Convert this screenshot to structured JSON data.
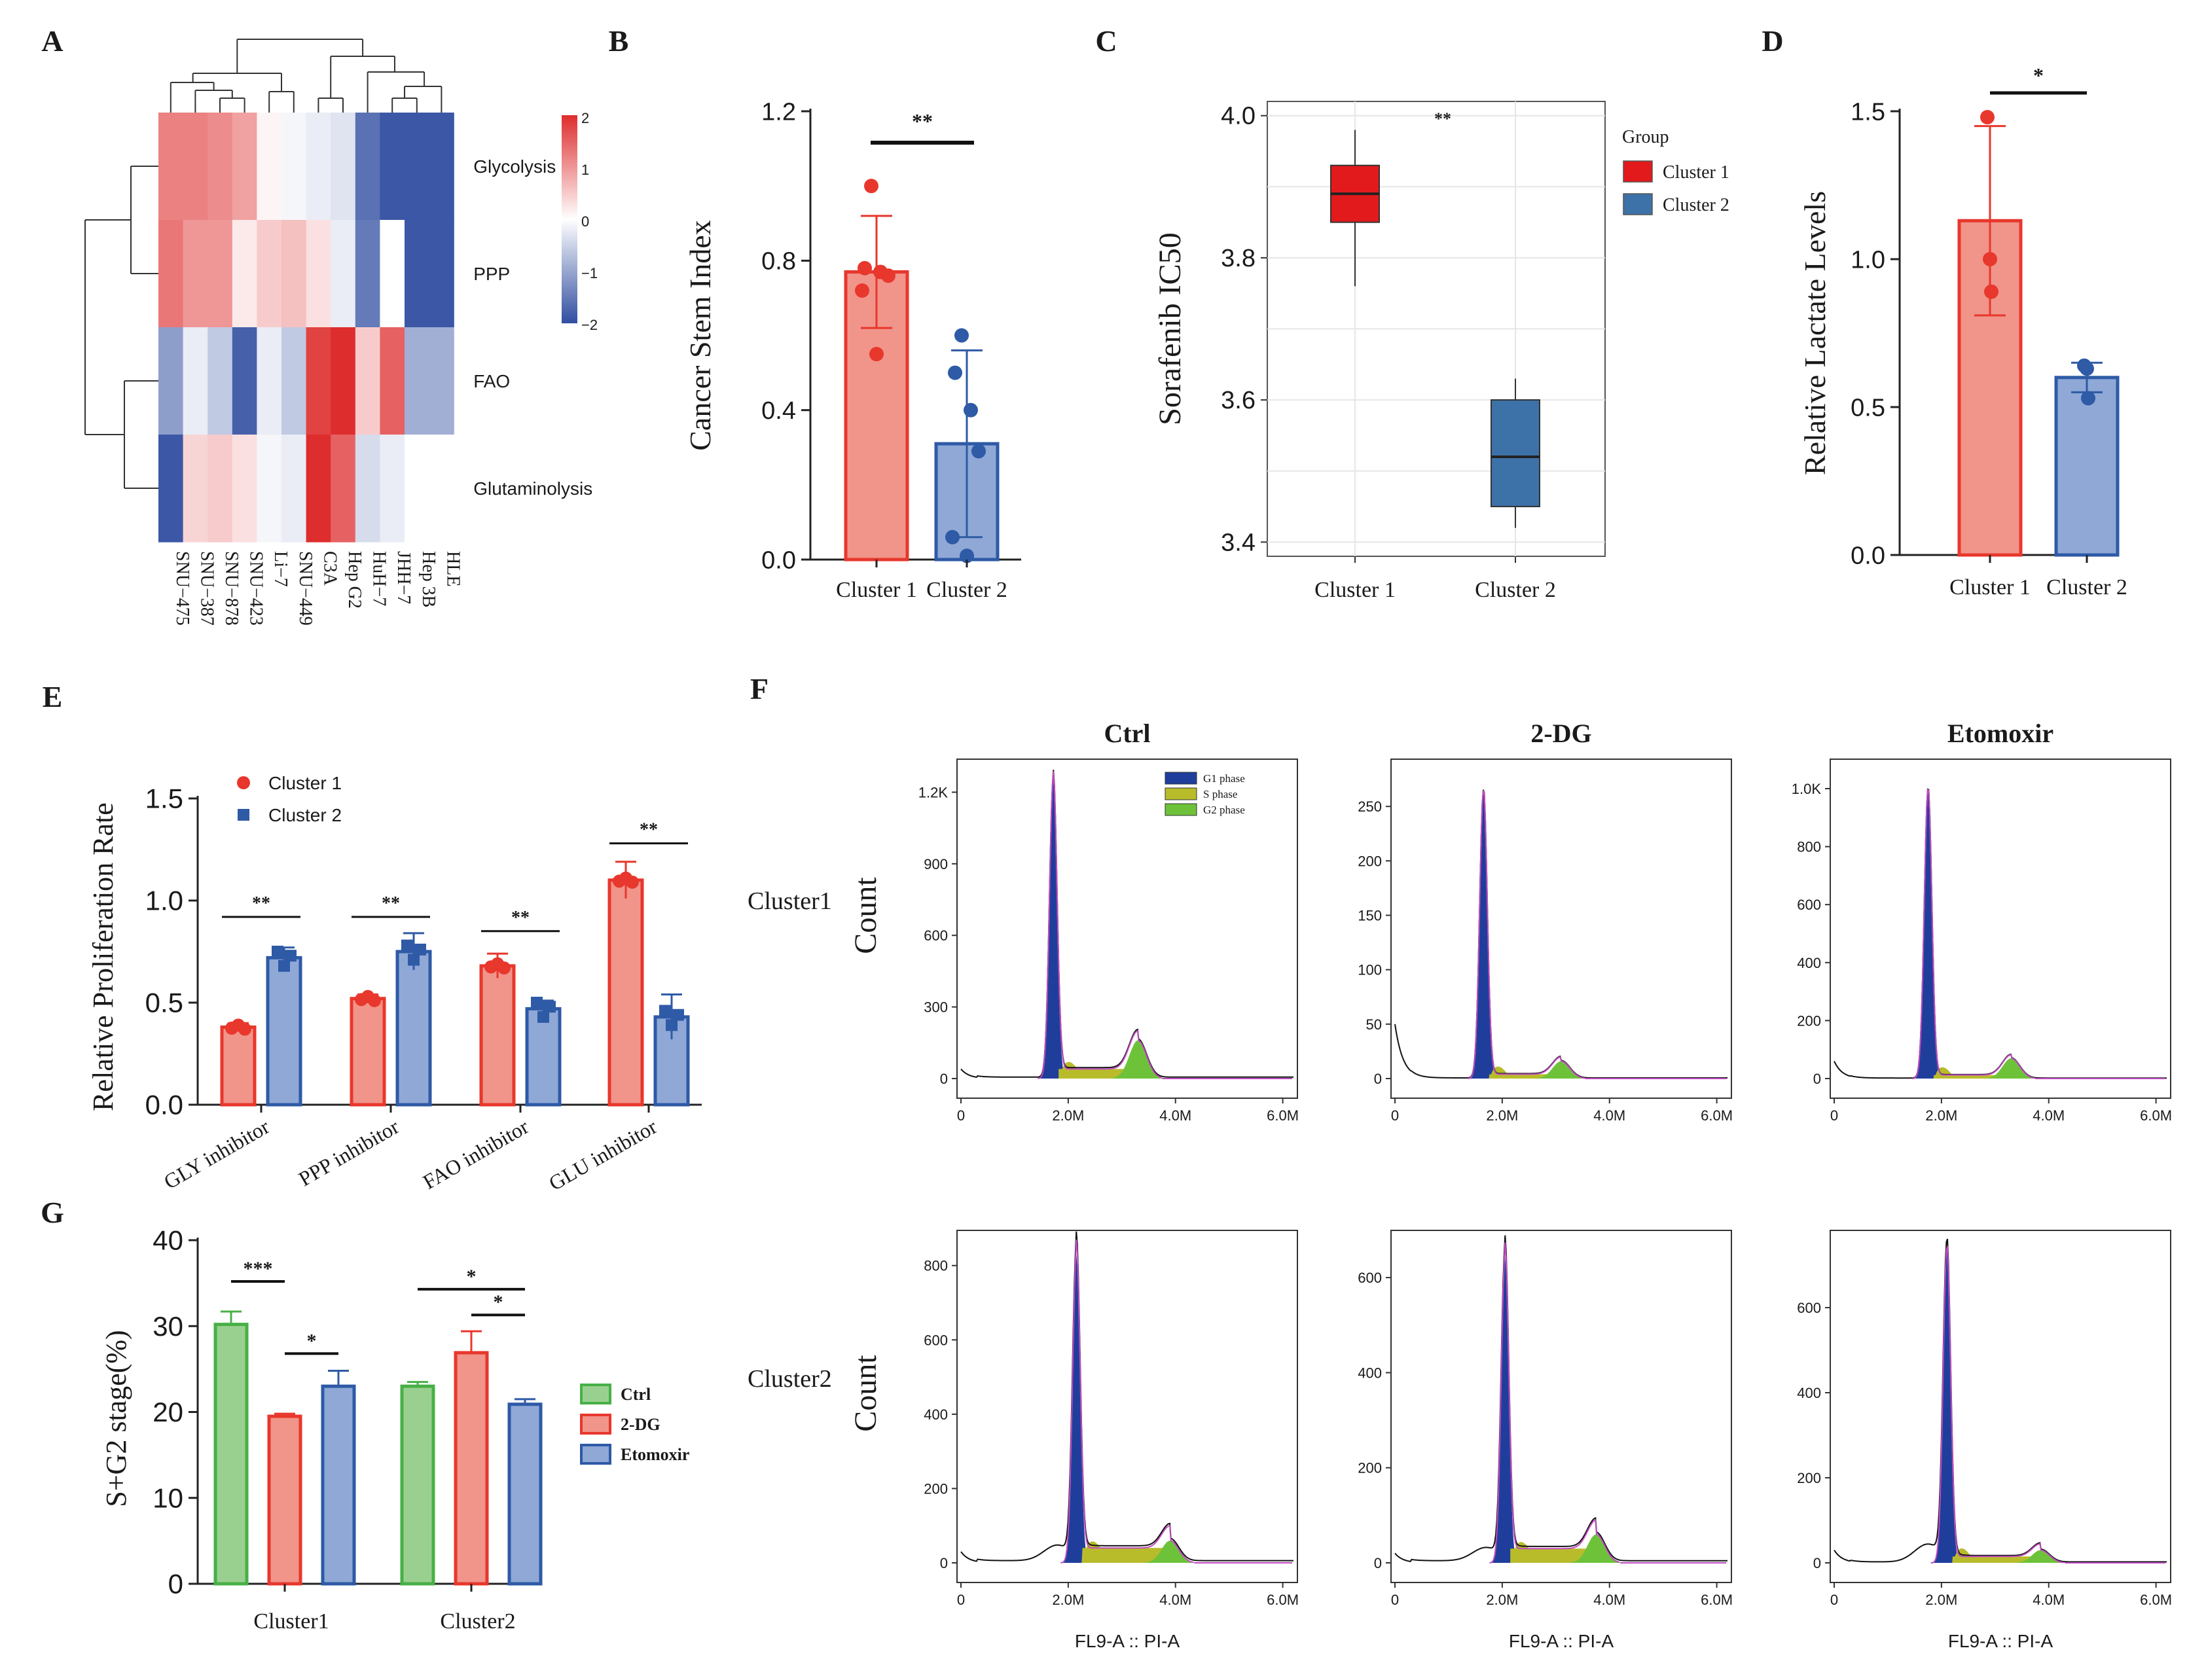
{
  "colors": {
    "red_fill": "#F1948A",
    "red_edge": "#E8372C",
    "blue_fill": "#8FA8D6",
    "blue_edge": "#2E5AA6",
    "green_fill": "#9AD08F",
    "green_edge": "#47B047",
    "box_red": "#E31A1C",
    "box_blue": "#3D72A8",
    "g1": "#1F3E9C",
    "s": "#B8BC2A",
    "g2": "#6EC23A"
  },
  "panel_letters": [
    "A",
    "B",
    "C",
    "D",
    "E",
    "F",
    "G"
  ],
  "chart_data": [
    {
      "panel": "A",
      "type": "heatmap",
      "columns": [
        "SNU−475",
        "SNU−387",
        "SNU−878",
        "SNU−423",
        "Li−7",
        "SNU−449",
        "C3A",
        "Hep G2",
        "HuH−7",
        "JHH−7",
        "Hep 3B",
        "HLE"
      ],
      "rows": [
        "Glycolysis",
        "PPP",
        "FAO",
        "Glutaminolysis"
      ],
      "values": [
        [
          1.2,
          1.2,
          1.1,
          0.9,
          0.1,
          -0.1,
          -0.2,
          -0.3,
          -1.6,
          -1.9,
          -1.9,
          -1.9
        ],
        [
          1.3,
          1.0,
          1.0,
          0.2,
          0.5,
          0.6,
          0.3,
          -0.2,
          -1.5,
          0.0,
          -1.9,
          -1.9
        ],
        [
          -1.1,
          -0.2,
          -0.6,
          -1.8,
          -0.2,
          -0.6,
          1.8,
          2.0,
          0.5,
          1.5,
          -0.9,
          -0.9
        ],
        [
          -1.9,
          0.4,
          0.5,
          0.3,
          -0.1,
          -0.2,
          2.0,
          1.5,
          -0.4,
          -0.2,
          0.0,
          0.0
        ]
      ],
      "legend_ticks": [
        "2",
        "1",
        "0",
        "−1",
        "−2"
      ]
    },
    {
      "panel": "B",
      "type": "bar",
      "ylabel": "Cancer Stem Index",
      "categories": [
        "Cluster 1",
        "Cluster 2"
      ],
      "values": [
        0.77,
        0.31
      ],
      "errors": [
        0.15,
        0.25
      ],
      "points": [
        [
          1.0,
          0.78,
          0.77,
          0.76,
          0.72,
          0.55
        ],
        [
          0.6,
          0.5,
          0.4,
          0.29,
          0.06,
          0.01
        ]
      ],
      "ylim": [
        0,
        1.2
      ],
      "yticks": [
        "0.0",
        "0.4",
        "0.8",
        "1.2"
      ],
      "significance": "**"
    },
    {
      "panel": "C",
      "type": "box",
      "ylabel": "Sorafenib IC50",
      "categories": [
        "Cluster 1",
        "Cluster 2"
      ],
      "boxes": [
        {
          "min": 3.76,
          "q1": 3.85,
          "median": 3.89,
          "q3": 3.93,
          "max": 3.98
        },
        {
          "min": 3.42,
          "q1": 3.45,
          "median": 3.52,
          "q3": 3.6,
          "max": 3.63
        }
      ],
      "ylim": [
        3.38,
        4.02
      ],
      "yticks": [
        "3.4",
        "3.6",
        "3.8",
        "4.0"
      ],
      "legend_title": "Group",
      "legend": [
        "Cluster 1",
        "Cluster 2"
      ],
      "significance": "**"
    },
    {
      "panel": "D",
      "type": "bar",
      "ylabel": "Relative Lactate Levels",
      "categories": [
        "Cluster 1",
        "Cluster 2"
      ],
      "values": [
        1.13,
        0.6
      ],
      "errors": [
        0.32,
        0.05
      ],
      "points": [
        [
          1.48,
          1.0,
          0.89
        ],
        [
          0.64,
          0.63,
          0.53
        ]
      ],
      "ylim": [
        0,
        1.5
      ],
      "yticks": [
        "0.0",
        "0.5",
        "1.0",
        "1.5"
      ],
      "significance": "*"
    },
    {
      "panel": "E",
      "type": "bar",
      "ylabel": "Relative Proliferation Rate",
      "categories": [
        "GLY inhibitor",
        "PPP inhibitor",
        "FAO inhibitor",
        "GLU inhibitor"
      ],
      "series": [
        {
          "name": "Cluster 1",
          "values": [
            0.38,
            0.52,
            0.68,
            1.1
          ],
          "errors": [
            0.02,
            0.02,
            0.06,
            0.09
          ]
        },
        {
          "name": "Cluster 2",
          "values": [
            0.72,
            0.75,
            0.47,
            0.43
          ],
          "errors": [
            0.05,
            0.09,
            0.04,
            0.11
          ]
        }
      ],
      "ylim": [
        0,
        1.5
      ],
      "yticks": [
        "0.0",
        "0.5",
        "1.0",
        "1.5"
      ],
      "significance": [
        "**",
        "**",
        "**",
        "**"
      ]
    },
    {
      "panel": "G",
      "type": "bar",
      "ylabel": "S+G2 stage(%)",
      "categories": [
        "Cluster1",
        "Cluster2"
      ],
      "series": [
        {
          "name": "Ctrl",
          "values": [
            30.2,
            23.0
          ],
          "errors": [
            1.5,
            0.5
          ]
        },
        {
          "name": "2-DG",
          "values": [
            19.5,
            26.9
          ],
          "errors": [
            0.3,
            2.5
          ]
        },
        {
          "name": "Etomoxir",
          "values": [
            23.0,
            20.9
          ],
          "errors": [
            1.8,
            0.6
          ]
        }
      ],
      "ylim": [
        0,
        40
      ],
      "yticks": [
        "0",
        "10",
        "20",
        "30",
        "40"
      ],
      "significance_labels": [
        "***",
        "*",
        "*",
        "*"
      ]
    },
    {
      "panel": "F",
      "type": "histogram-grid",
      "columns": [
        "Ctrl",
        "2-DG",
        "Etomoxir"
      ],
      "rows": [
        "Cluster1",
        "Cluster2"
      ],
      "ylabel": "Count",
      "xlabel": "FL9-A :: PI-A",
      "xticks": [
        "0",
        "2.0M",
        "4.0M",
        "6.0M"
      ],
      "phase_legend": [
        "G1 phase",
        "S phase",
        "G2 phase"
      ],
      "plots": [
        {
          "ymax": 1300,
          "yticks": [
            "0",
            "300",
            "600",
            "900",
            "1.2K"
          ],
          "tickvals": [
            0,
            300,
            600,
            900,
            1200
          ],
          "g1_pos": 1.72,
          "g1_height": 1250,
          "g2_pos": 3.3,
          "g2_height": 160,
          "s_level": 40,
          "left_debris": 40
        },
        {
          "ymax": 285,
          "yticks": [
            "0",
            "50",
            "100",
            "150",
            "200",
            "250"
          ],
          "tickvals": [
            0,
            50,
            100,
            150,
            200,
            250
          ],
          "g1_pos": 1.65,
          "g1_height": 265,
          "g2_pos": 3.1,
          "g2_height": 16,
          "s_level": 4,
          "left_debris": 50
        },
        {
          "ymax": 1070,
          "yticks": [
            "0",
            "200",
            "400",
            "600",
            "800",
            "1.0K"
          ],
          "tickvals": [
            0,
            200,
            400,
            600,
            800,
            1000
          ],
          "g1_pos": 1.75,
          "g1_height": 1000,
          "g2_pos": 3.3,
          "g2_height": 70,
          "s_level": 12,
          "left_debris": 60
        },
        {
          "ymax": 870,
          "yticks": [
            "0",
            "200",
            "400",
            "600",
            "800"
          ],
          "tickvals": [
            0,
            200,
            400,
            600,
            800
          ],
          "g1_pos": 2.15,
          "g1_height": 830,
          "g2_pos": 3.9,
          "g2_height": 60,
          "s_level": 40,
          "left_debris": 30
        },
        {
          "ymax": 680,
          "yticks": [
            "0",
            "200",
            "400",
            "600"
          ],
          "tickvals": [
            0,
            200,
            400,
            600
          ],
          "g1_pos": 2.05,
          "g1_height": 645,
          "g2_pos": 3.75,
          "g2_height": 60,
          "s_level": 30,
          "left_debris": 20
        },
        {
          "ymax": 760,
          "yticks": [
            "0",
            "200",
            "400",
            "600"
          ],
          "tickvals": [
            0,
            200,
            400,
            600
          ],
          "g1_pos": 2.1,
          "g1_height": 740,
          "g2_pos": 3.85,
          "g2_height": 30,
          "s_level": 15,
          "left_debris": 30
        }
      ]
    }
  ]
}
